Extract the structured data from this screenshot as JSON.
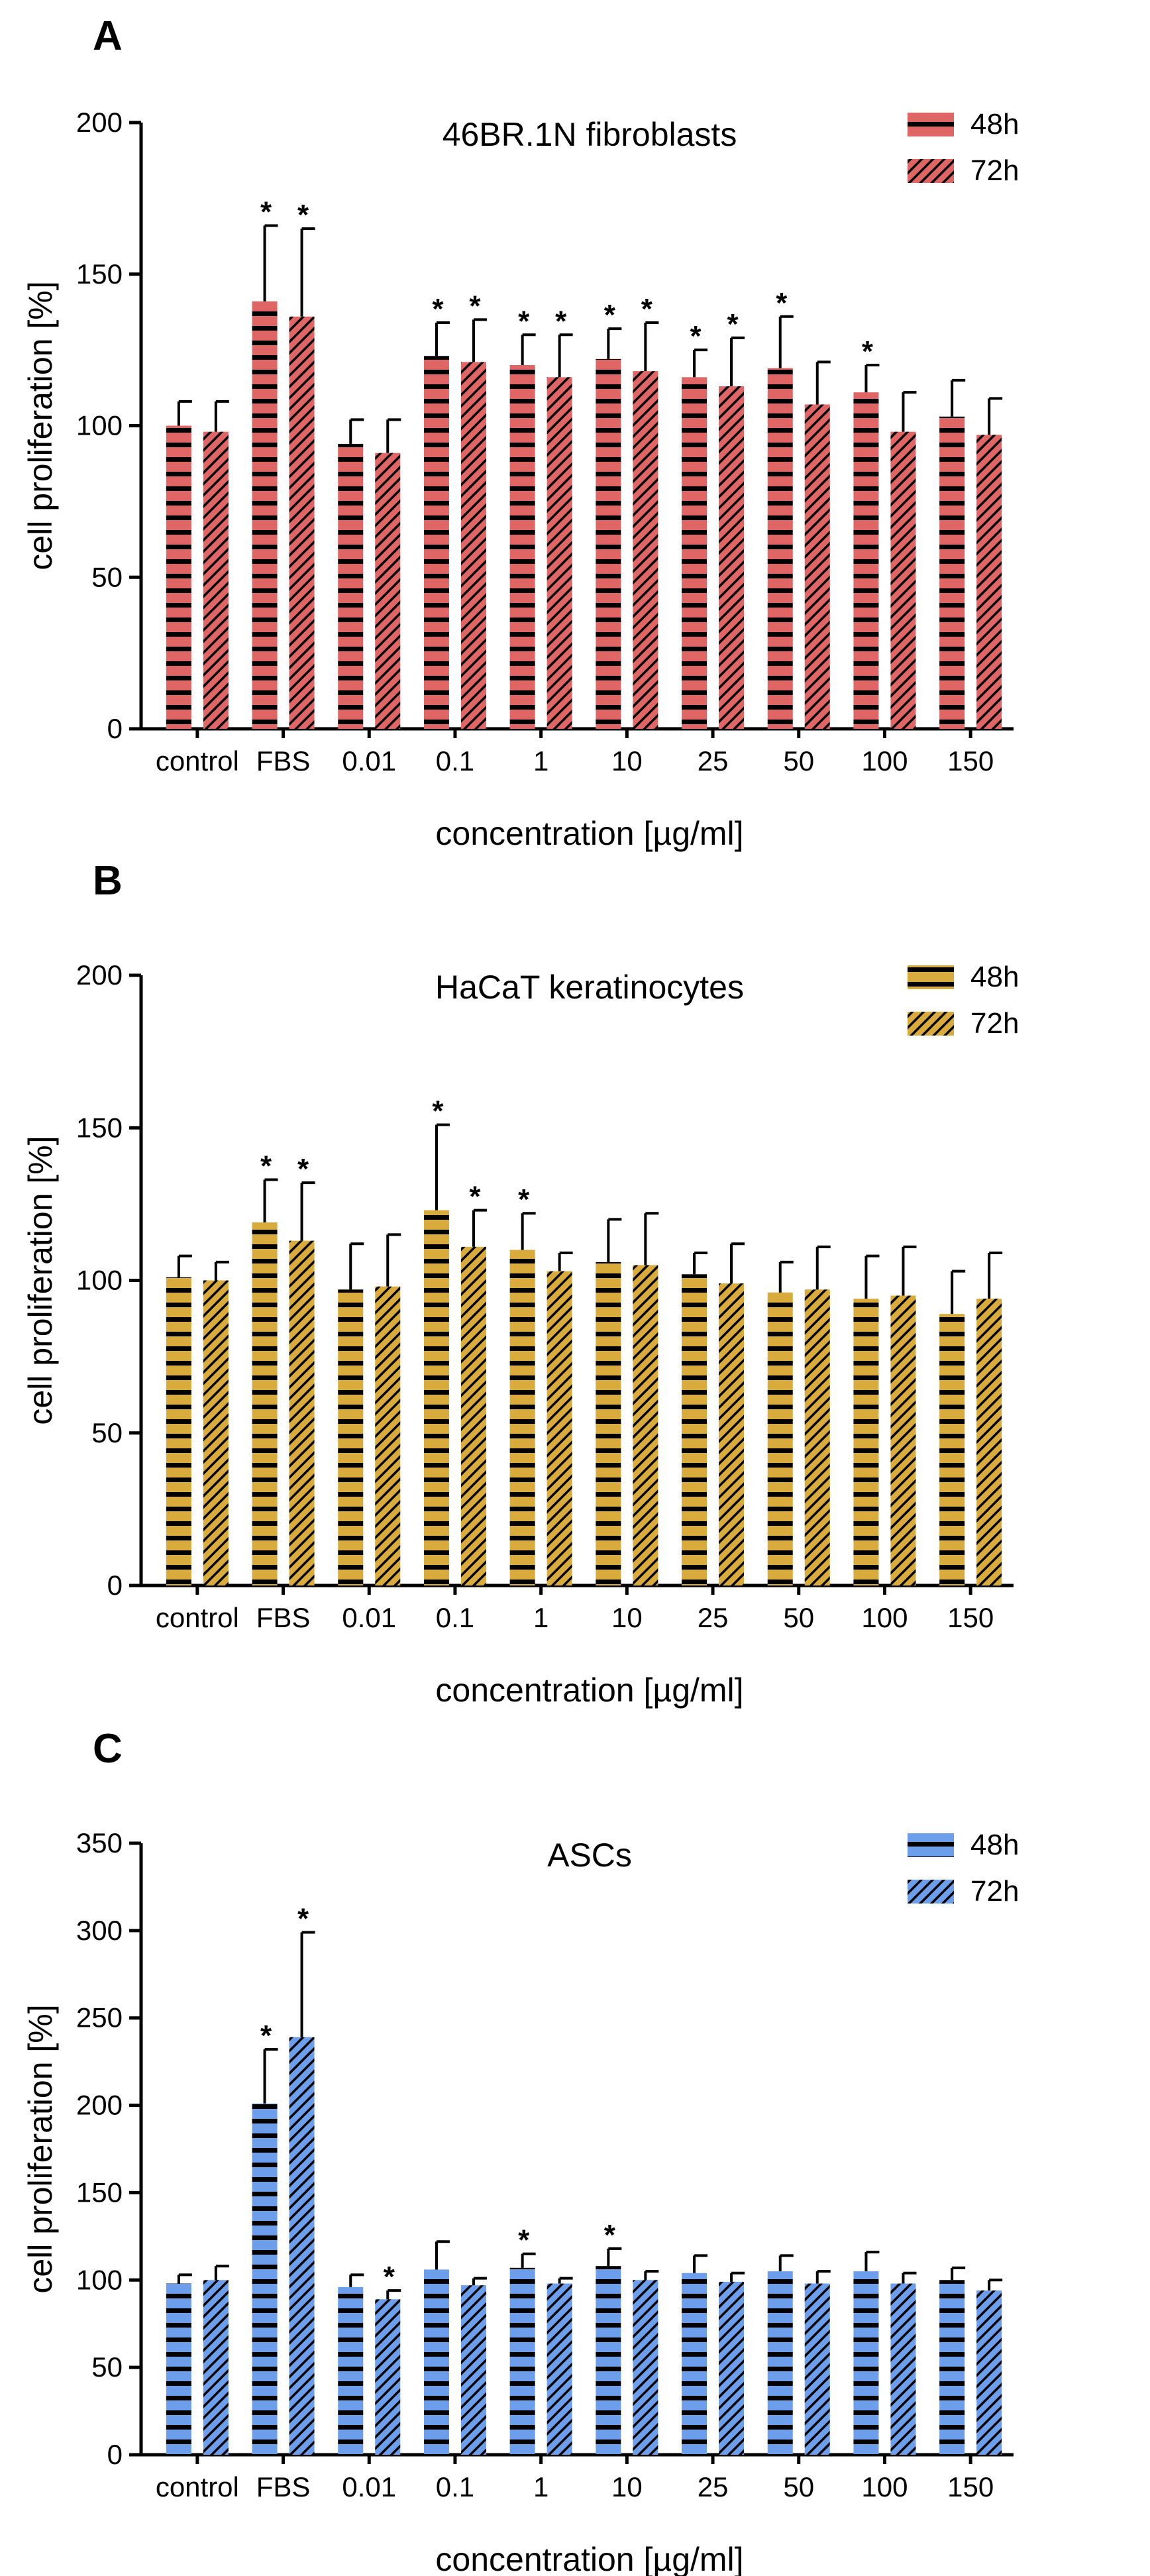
{
  "colors": {
    "panel_A": "#e06666",
    "panel_B": "#d9ab3c",
    "panel_C": "#6d9eeb",
    "stripe": "#000000"
  },
  "chart_data": [
    {
      "type": "bar",
      "panel": "A",
      "title": "46BR.1N fibroblasts",
      "xlabel": "concentration [µg/ml]",
      "ylabel": "cell proliferation [%]",
      "categories": [
        "control",
        "FBS",
        "0.01",
        "0.1",
        "1",
        "10",
        "25",
        "50",
        "100",
        "150"
      ],
      "ylim": [
        0,
        200
      ],
      "yticks": [
        0,
        50,
        100,
        150,
        200
      ],
      "legend_position": "top-right",
      "series": [
        {
          "name": "48h",
          "values": [
            100,
            141,
            94,
            123,
            120,
            122,
            116,
            119,
            111,
            103
          ],
          "errors": [
            8,
            25,
            8,
            11,
            10,
            10,
            9,
            17,
            9,
            12
          ],
          "significant": [
            false,
            true,
            false,
            true,
            true,
            true,
            true,
            true,
            true,
            false
          ]
        },
        {
          "name": "72h",
          "values": [
            98,
            136,
            91,
            121,
            116,
            118,
            113,
            107,
            98,
            97
          ],
          "errors": [
            10,
            29,
            11,
            14,
            14,
            16,
            16,
            14,
            13,
            12
          ],
          "significant": [
            false,
            true,
            false,
            true,
            true,
            true,
            true,
            false,
            false,
            false
          ]
        }
      ]
    },
    {
      "type": "bar",
      "panel": "B",
      "title": "HaCaT keratinocytes",
      "xlabel": "concentration [µg/ml]",
      "ylabel": "cell proliferation [%]",
      "categories": [
        "control",
        "FBS",
        "0.01",
        "0.1",
        "1",
        "10",
        "25",
        "50",
        "100",
        "150"
      ],
      "ylim": [
        0,
        200
      ],
      "yticks": [
        0,
        50,
        100,
        150,
        200
      ],
      "legend_position": "top-right",
      "series": [
        {
          "name": "48h",
          "values": [
            101,
            119,
            97,
            123,
            110,
            106,
            102,
            96,
            94,
            89
          ],
          "errors": [
            7,
            14,
            15,
            28,
            12,
            14,
            7,
            10,
            14,
            14
          ],
          "significant": [
            false,
            true,
            false,
            true,
            true,
            false,
            false,
            false,
            false,
            false
          ]
        },
        {
          "name": "72h",
          "values": [
            100,
            113,
            98,
            111,
            103,
            105,
            99,
            97,
            95,
            94
          ],
          "errors": [
            6,
            19,
            17,
            12,
            6,
            17,
            13,
            14,
            16,
            15
          ],
          "significant": [
            false,
            true,
            false,
            true,
            false,
            false,
            false,
            false,
            false,
            false
          ]
        }
      ]
    },
    {
      "type": "bar",
      "panel": "C",
      "title": "ASCs",
      "xlabel": "concentration [µg/ml]",
      "ylabel": "cell proliferation [%]",
      "categories": [
        "control",
        "FBS",
        "0.01",
        "0.1",
        "1",
        "10",
        "25",
        "50",
        "100",
        "150"
      ],
      "ylim": [
        0,
        350
      ],
      "yticks": [
        0,
        50,
        100,
        150,
        200,
        250,
        300,
        350
      ],
      "legend_position": "top-right",
      "series": [
        {
          "name": "48h",
          "values": [
            98,
            201,
            96,
            106,
            107,
            108,
            104,
            105,
            105,
            100
          ],
          "errors": [
            5,
            31,
            7,
            16,
            8,
            10,
            10,
            9,
            11,
            7
          ],
          "significant": [
            false,
            true,
            false,
            false,
            true,
            true,
            false,
            false,
            false,
            false
          ]
        },
        {
          "name": "72h",
          "values": [
            100,
            239,
            89,
            97,
            98,
            100,
            99,
            98,
            98,
            94
          ],
          "errors": [
            8,
            60,
            5,
            4,
            3,
            5,
            5,
            7,
            6,
            6
          ],
          "significant": [
            false,
            true,
            true,
            false,
            false,
            false,
            false,
            false,
            false,
            false
          ]
        }
      ]
    }
  ]
}
